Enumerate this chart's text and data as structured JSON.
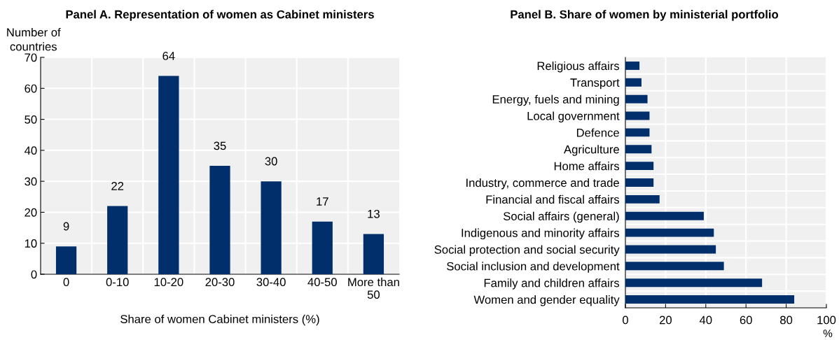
{
  "chart_data": [
    {
      "type": "bar",
      "title": "Panel A. Representation of women as Cabinet ministers",
      "ylabel": "Number of\ncountries",
      "xlabel": "Share of women Cabinet ministers (%)",
      "categories": [
        "0",
        "0-10",
        "10-20",
        "20-30",
        "30-40",
        "40-50",
        "More than\n50"
      ],
      "values": [
        9,
        22,
        64,
        35,
        30,
        17,
        13
      ],
      "color": "#002f6c",
      "data_labels": true,
      "ylim": [
        0,
        70
      ],
      "yticks": [
        0,
        10,
        20,
        30,
        40,
        50,
        60,
        70
      ],
      "grid": true
    },
    {
      "type": "bar",
      "orientation": "horizontal",
      "title": "Panel B. Share of women by ministerial portfolio",
      "xlabel": "%",
      "categories": [
        "Religious affairs",
        "Transport",
        "Energy, fuels and mining",
        "Local government",
        "Defence",
        "Agriculture",
        "Home affairs",
        "Industry, commerce and trade",
        "Financial and fiscal affairs",
        "Social affairs (general)",
        "Indigenous and minority affairs",
        "Social protection and social security",
        "Social inclusion and development",
        "Family and children affairs",
        "Women and gender equality"
      ],
      "values": [
        7,
        8,
        11,
        12,
        12,
        13,
        14,
        14,
        17,
        39,
        44,
        45,
        49,
        68,
        84
      ],
      "color": "#002f6c",
      "xlim": [
        0,
        100
      ],
      "xticks": [
        0,
        20,
        40,
        60,
        80,
        100
      ],
      "grid": true
    }
  ]
}
